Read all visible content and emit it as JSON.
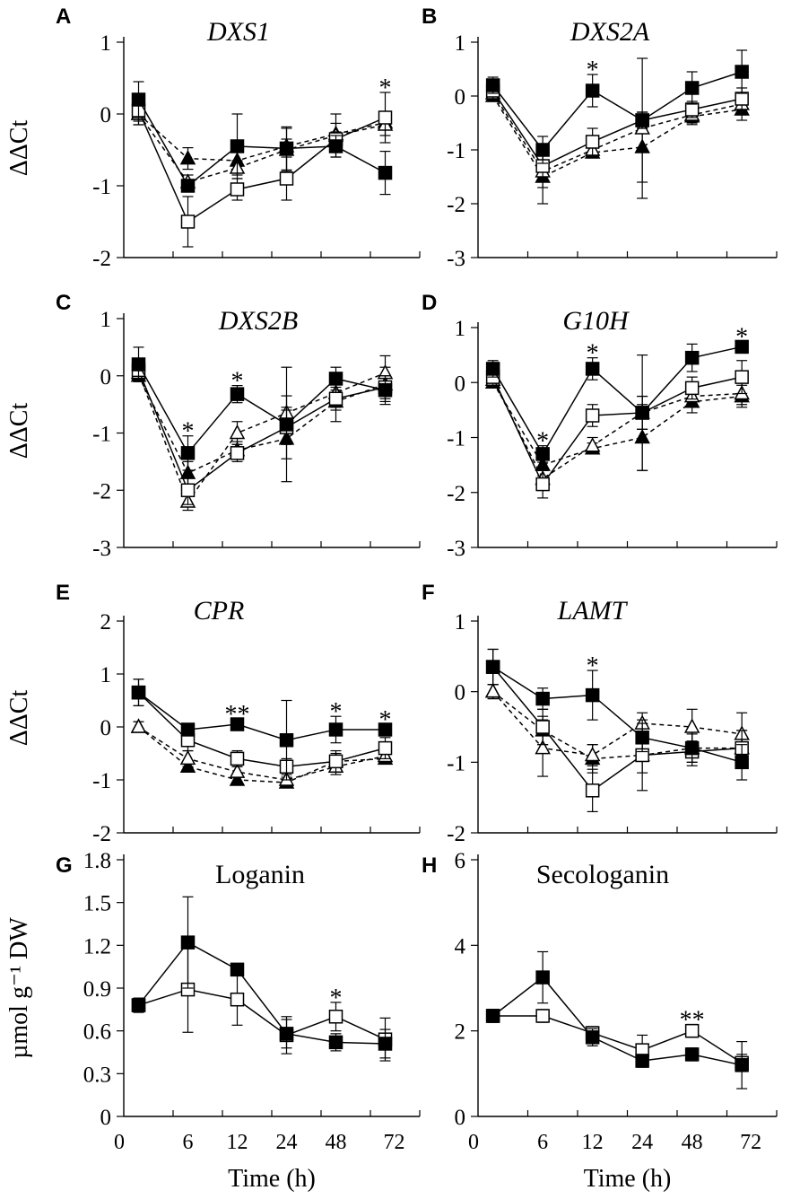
{
  "figure": {
    "y_label_gene": "ΔΔCt",
    "y_label_metabolite": "µmol g⁻¹ DW",
    "x_label": "Time (h)",
    "significance_marker": "*",
    "series_styles": [
      {
        "name": "filled square, solid",
        "marker": "square",
        "filled": true,
        "dashed": false
      },
      {
        "name": "open square, solid",
        "marker": "square",
        "filled": false,
        "dashed": false
      },
      {
        "name": "open triangle, dashed",
        "marker": "triangle",
        "filled": false,
        "dashed": true
      },
      {
        "name": "filled triangle, dashed",
        "marker": "triangle",
        "filled": true,
        "dashed": true
      }
    ],
    "colors": {
      "line": "#000000",
      "fill_open": "#ffffff"
    }
  },
  "chart_data": [
    {
      "panel": "A",
      "title": "DXS1",
      "title_italic": true,
      "type": "line",
      "ylim": [
        -2,
        1
      ],
      "yticks": [
        1,
        0,
        -1,
        -2
      ],
      "xticks": [],
      "ylabel": "ΔΔCt",
      "xlabel": "",
      "series": [
        {
          "name": "filled square, solid",
          "values": [
            0.2,
            -1.0,
            -0.45,
            -0.48,
            -0.45,
            -0.82
          ],
          "errors": [
            0.25,
            0.08,
            0.45,
            0.3,
            0.15,
            0.3
          ]
        },
        {
          "name": "open square, solid",
          "values": [
            0.05,
            -1.5,
            -1.05,
            -0.9,
            -0.35,
            -0.05
          ],
          "errors": [
            0.2,
            0.35,
            0.15,
            0.3,
            0.1,
            0.35
          ]
        },
        {
          "name": "open triangle, dashed",
          "values": [
            0.0,
            -0.95,
            -0.75,
            -0.5,
            -0.3,
            -0.15
          ],
          "errors": [
            0.15,
            0.1,
            0.1,
            0.3,
            0.3,
            0.15
          ]
        },
        {
          "name": "filled triangle, dashed",
          "values": [
            0.0,
            -0.62,
            -0.65,
            -0.45,
            -0.28,
            -0.12
          ],
          "errors": [
            0.1,
            0.15,
            0.12,
            0.1,
            0.15,
            0.1
          ]
        }
      ],
      "significance": [
        {
          "index": 5,
          "label": "*"
        }
      ]
    },
    {
      "panel": "B",
      "title": "DXS2A",
      "title_italic": true,
      "type": "line",
      "ylim": [
        -3,
        1
      ],
      "yticks": [
        1,
        0,
        -1,
        -2,
        -3
      ],
      "xticks": [],
      "ylabel": "",
      "xlabel": "",
      "series": [
        {
          "name": "filled square, solid",
          "values": [
            0.2,
            -1.0,
            0.1,
            -0.45,
            0.15,
            0.45
          ],
          "errors": [
            0.15,
            0.25,
            0.3,
            0.15,
            0.3,
            0.4
          ]
        },
        {
          "name": "open square, solid",
          "values": [
            0.1,
            -1.3,
            -0.85,
            -0.45,
            -0.25,
            -0.05
          ],
          "errors": [
            0.15,
            0.25,
            0.25,
            0.15,
            0.15,
            0.2
          ]
        },
        {
          "name": "open triangle, dashed",
          "values": [
            0.05,
            -1.4,
            -1.0,
            -0.6,
            -0.35,
            -0.15
          ],
          "errors": [
            0.15,
            0.3,
            0.1,
            1.3,
            0.15,
            0.2
          ]
        },
        {
          "name": "filled triangle, dashed",
          "values": [
            0.0,
            -1.5,
            -1.05,
            -0.95,
            -0.38,
            -0.25
          ],
          "errors": [
            0.1,
            0.5,
            0.1,
            0.65,
            0.15,
            0.2
          ]
        }
      ],
      "significance": [
        {
          "index": 2,
          "label": "*"
        }
      ]
    },
    {
      "panel": "C",
      "title": "DXS2B",
      "title_italic": true,
      "type": "line",
      "ylim": [
        -3,
        1
      ],
      "yticks": [
        1,
        0,
        -1,
        -2,
        -3
      ],
      "xticks": [],
      "ylabel": "ΔΔCt",
      "xlabel": "",
      "series": [
        {
          "name": "filled square, solid",
          "values": [
            0.2,
            -1.35,
            -0.32,
            -0.85,
            -0.05,
            -0.25
          ],
          "errors": [
            0.3,
            0.3,
            0.15,
            0.3,
            0.2,
            0.25
          ]
        },
        {
          "name": "open square, solid",
          "values": [
            0.1,
            -2.0,
            -1.35,
            -0.9,
            -0.4,
            -0.2
          ],
          "errors": [
            0.2,
            0.25,
            0.15,
            0.3,
            0.2,
            0.2
          ]
        },
        {
          "name": "open triangle, dashed",
          "values": [
            0.05,
            -2.2,
            -1.0,
            -0.65,
            -0.3,
            0.05
          ],
          "errors": [
            0.15,
            0.15,
            0.2,
            0.8,
            0.25,
            0.3
          ]
        },
        {
          "name": "filled triangle, dashed",
          "values": [
            0.0,
            -1.7,
            -1.3,
            -1.1,
            -0.45,
            -0.15
          ],
          "errors": [
            0.1,
            0.2,
            0.15,
            0.75,
            0.35,
            0.3
          ]
        }
      ],
      "significance": [
        {
          "index": 1,
          "label": "*"
        },
        {
          "index": 2,
          "label": "*"
        }
      ]
    },
    {
      "panel": "D",
      "title": "G10H",
      "title_italic": true,
      "type": "line",
      "ylim": [
        -3,
        1
      ],
      "yticks": [
        1,
        0,
        -1,
        -2,
        -3
      ],
      "xticks": [],
      "ylabel": "",
      "xlabel": "",
      "series": [
        {
          "name": "filled square, solid",
          "values": [
            0.25,
            -1.3,
            0.25,
            -0.55,
            0.45,
            0.65
          ],
          "errors": [
            0.15,
            0.15,
            0.2,
            1.05,
            0.25,
            0.1
          ]
        },
        {
          "name": "open square, solid",
          "values": [
            0.1,
            -1.85,
            -0.6,
            -0.55,
            -0.1,
            0.1
          ],
          "errors": [
            0.2,
            0.25,
            0.2,
            0.3,
            0.2,
            0.3
          ]
        },
        {
          "name": "open triangle, dashed",
          "values": [
            0.05,
            -1.75,
            -1.15,
            -0.55,
            -0.25,
            -0.2
          ],
          "errors": [
            0.15,
            0.2,
            0.15,
            0.3,
            0.2,
            0.2
          ]
        },
        {
          "name": "filled triangle, dashed",
          "values": [
            0.0,
            -1.5,
            -1.2,
            -1.0,
            -0.35,
            -0.25
          ],
          "errors": [
            0.1,
            0.2,
            0.1,
            0.6,
            0.2,
            0.2
          ]
        }
      ],
      "significance": [
        {
          "index": 1,
          "label": "*"
        },
        {
          "index": 2,
          "label": "*"
        },
        {
          "index": 5,
          "label": "*"
        }
      ]
    },
    {
      "panel": "E",
      "title": "CPR",
      "title_italic": true,
      "type": "line",
      "ylim": [
        -2,
        2
      ],
      "yticks": [
        2,
        1,
        0,
        -1,
        -2
      ],
      "xticks": [],
      "ylabel": "ΔΔCt",
      "xlabel": "",
      "series": [
        {
          "name": "filled square, solid",
          "values": [
            0.65,
            -0.05,
            0.05,
            -0.25,
            -0.05,
            -0.05
          ],
          "errors": [
            0.25,
            0.1,
            0.1,
            0.75,
            0.25,
            0.1
          ]
        },
        {
          "name": "open square, solid",
          "values": [
            0.65,
            -0.25,
            -0.6,
            -0.75,
            -0.65,
            -0.4
          ],
          "errors": [
            0.25,
            0.2,
            0.15,
            0.15,
            0.2,
            0.2
          ]
        },
        {
          "name": "open triangle, dashed",
          "values": [
            0.0,
            -0.6,
            -0.85,
            -1.0,
            -0.75,
            -0.55
          ],
          "errors": [
            0.1,
            0.15,
            0.1,
            0.15,
            0.15,
            0.15
          ]
        },
        {
          "name": "filled triangle, dashed",
          "values": [
            0.0,
            -0.75,
            -1.0,
            -1.05,
            -0.65,
            -0.6
          ],
          "errors": [
            0.1,
            0.1,
            0.1,
            0.1,
            0.15,
            0.1
          ]
        }
      ],
      "significance": [
        {
          "index": 2,
          "label": "**"
        },
        {
          "index": 4,
          "label": "*"
        },
        {
          "index": 5,
          "label": "*"
        }
      ]
    },
    {
      "panel": "F",
      "title": "LAMT",
      "title_italic": true,
      "type": "line",
      "ylim": [
        -2,
        1
      ],
      "yticks": [
        1,
        0,
        -1,
        -2
      ],
      "xticks": [],
      "ylabel": "",
      "xlabel": "",
      "series": [
        {
          "name": "filled square, solid",
          "values": [
            0.35,
            -0.1,
            -0.05,
            -0.65,
            -0.8,
            -1.0
          ],
          "errors": [
            0.25,
            0.15,
            0.35,
            0.2,
            0.2,
            0.25
          ]
        },
        {
          "name": "open square, solid",
          "values": [
            0.35,
            -0.5,
            -1.4,
            -0.9,
            -0.85,
            -0.8
          ],
          "errors": [
            0.25,
            0.25,
            0.3,
            0.5,
            0.15,
            0.25
          ]
        },
        {
          "name": "open triangle, dashed",
          "values": [
            0.0,
            -0.8,
            -0.9,
            -0.45,
            -0.5,
            -0.6
          ],
          "errors": [
            0.1,
            0.4,
            0.15,
            0.15,
            0.25,
            0.3
          ]
        },
        {
          "name": "filled triangle, dashed",
          "values": [
            0.0,
            -0.55,
            -0.95,
            -0.9,
            -0.8,
            -0.8
          ],
          "errors": [
            0.1,
            0.2,
            0.2,
            0.25,
            0.25,
            0.25
          ]
        }
      ],
      "significance": [
        {
          "index": 2,
          "label": "*"
        }
      ]
    },
    {
      "panel": "G",
      "title": "Loganin",
      "title_italic": false,
      "type": "line",
      "ylim": [
        0,
        1.8
      ],
      "yticks": [
        "0",
        "0.3",
        "0.6",
        "0.9",
        "1.2",
        "1.5",
        "1.8"
      ],
      "xticks": [
        "0",
        "6",
        "12",
        "24",
        "48",
        "72"
      ],
      "ylabel": "µmol g⁻¹ DW",
      "xlabel": "Time (h)",
      "series": [
        {
          "name": "filled square, solid",
          "values": [
            0.78,
            1.22,
            1.03,
            0.58,
            0.52,
            0.51
          ],
          "errors": [
            0.05,
            0.32,
            0.04,
            0.1,
            0.06,
            0.1
          ]
        },
        {
          "name": "open square, solid",
          "values": [
            0.78,
            0.89,
            0.82,
            0.57,
            0.7,
            0.54
          ],
          "errors": [
            0.05,
            0.3,
            0.18,
            0.13,
            0.1,
            0.15
          ]
        }
      ],
      "significance": [
        {
          "index": 4,
          "label": "*"
        }
      ]
    },
    {
      "panel": "H",
      "title": "Secologanin",
      "title_italic": false,
      "type": "line",
      "ylim": [
        0,
        6
      ],
      "yticks": [
        "0",
        "2",
        "4",
        "6"
      ],
      "xticks": [
        "0",
        "6",
        "12",
        "24",
        "48",
        "72"
      ],
      "ylabel": "",
      "xlabel": "Time (h)",
      "series": [
        {
          "name": "filled square, solid",
          "values": [
            2.35,
            3.25,
            1.85,
            1.3,
            1.45,
            1.2
          ],
          "errors": [
            0.15,
            0.6,
            0.2,
            0.15,
            0.15,
            0.55
          ]
        },
        {
          "name": "open square, solid",
          "values": [
            2.35,
            2.35,
            1.95,
            1.55,
            2.0,
            1.25
          ],
          "errors": [
            0.15,
            0.15,
            0.15,
            0.35,
            0.15,
            0.2
          ]
        }
      ],
      "significance": [
        {
          "index": 4,
          "label": "**"
        }
      ]
    }
  ]
}
